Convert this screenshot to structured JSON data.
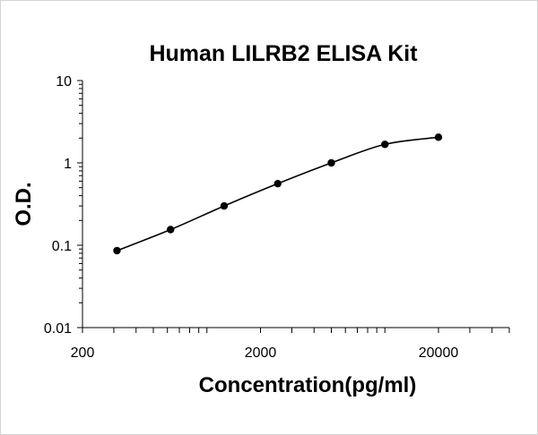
{
  "chart_data": {
    "type": "scatter",
    "title": "Human LILRB2 ELISA Kit",
    "xlabel": "Concentration(pg/ml)",
    "ylabel": "O.D.",
    "x_scale": "log",
    "y_scale": "log",
    "xlim": [
      200,
      50000
    ],
    "ylim": [
      0.01,
      10
    ],
    "x_ticks": [
      "200",
      "2000",
      "20000"
    ],
    "y_ticks": [
      "10",
      "1",
      "0.1",
      "0.01"
    ],
    "grid": false,
    "legend": "none",
    "trendline": "smooth curve through points",
    "series": [
      {
        "x": [
          312.5,
          625,
          1250,
          2500,
          5000,
          10000,
          20000
        ],
        "y": [
          0.086,
          0.155,
          0.3,
          0.56,
          1.0,
          1.68,
          2.05
        ]
      }
    ],
    "colors": {
      "marker": "#000000",
      "line": "#000000",
      "axis": "#000000"
    }
  }
}
